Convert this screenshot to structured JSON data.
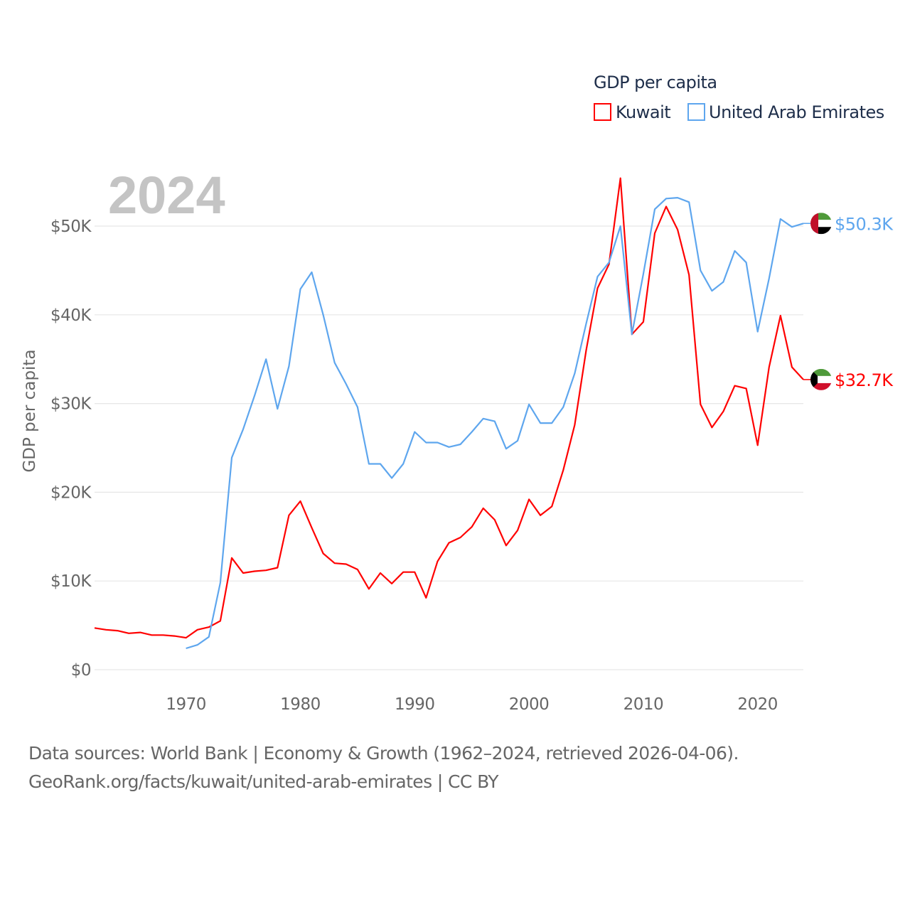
{
  "chart_data": {
    "type": "line",
    "title": "GDP per capita",
    "xlabel": "",
    "ylabel": "GDP per capita",
    "current_year_label": "2024",
    "xlim": [
      1962,
      2024
    ],
    "ylim": [
      0,
      55000
    ],
    "grid": true,
    "legend_placement": "top-right",
    "x_ticks": [
      1970,
      1980,
      1990,
      2000,
      2010,
      2020
    ],
    "x_tick_labels": [
      "1970",
      "1980",
      "1990",
      "2000",
      "2010",
      "2020"
    ],
    "y_ticks": [
      0,
      10000,
      20000,
      30000,
      40000,
      50000
    ],
    "y_tick_labels": [
      "$0",
      "$10K",
      "$20K",
      "$30K",
      "$40K",
      "$50K"
    ],
    "series": [
      {
        "name": "Kuwait",
        "color": "#ff0000",
        "end_label": "$32.7K",
        "flag": "kuwait-flag",
        "start_year": 1962,
        "values": [
          4700,
          4500,
          4400,
          4100,
          4200,
          3900,
          3900,
          3800,
          3600,
          4500,
          4800,
          5500,
          12600,
          10900,
          11100,
          11200,
          11500,
          17400,
          19000,
          16000,
          13100,
          12000,
          11900,
          11300,
          9100,
          10900,
          9700,
          11000,
          11000,
          8100,
          12200,
          14300,
          14900,
          16100,
          18200,
          16900,
          14000,
          15700,
          19200,
          17400,
          18400,
          22500,
          27600,
          36000,
          43000,
          45700,
          55400,
          37800,
          39200,
          49200,
          52200,
          49600,
          44500,
          29900,
          27300,
          29100,
          32000,
          31700,
          25300,
          34100,
          39900,
          34100,
          32700
        ]
      },
      {
        "name": "United Arab Emirates",
        "color": "#5ea6ee",
        "end_label": "$50.3K",
        "flag": "uae-flag",
        "start_year": 1970,
        "values": [
          2400,
          2800,
          3700,
          9800,
          23900,
          27100,
          30900,
          35000,
          29400,
          34200,
          42900,
          44800,
          40000,
          34600,
          32200,
          29600,
          23200,
          23200,
          21600,
          23200,
          26800,
          25600,
          25600,
          25100,
          25400,
          26800,
          28300,
          28000,
          24900,
          25800,
          29900,
          27800,
          27800,
          29600,
          33400,
          39000,
          44300,
          45900,
          50000,
          37800,
          44600,
          51900,
          53100,
          53200,
          52700,
          45000,
          42700,
          43700,
          47200,
          45900,
          38100,
          44100,
          50800,
          49900,
          50300
        ]
      }
    ]
  },
  "footer": {
    "sources": "Data sources: World Bank | Economy & Growth (1962–2024, retrieved 2026-04-06).",
    "credit": "GeoRank.org/facts/kuwait/united-arab-emirates | CC BY"
  }
}
